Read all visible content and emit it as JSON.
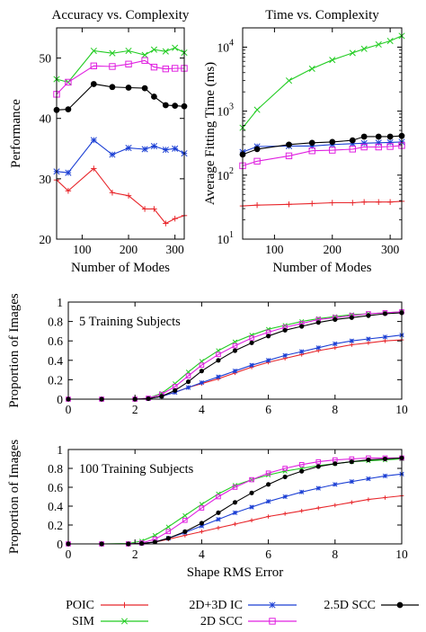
{
  "colors": {
    "POIC": "#e8262b",
    "SIM": "#22cc22",
    "2D+3D IC": "#1a3ed4",
    "2D SCC": "#e020e0",
    "2.5D SCC": "#000000"
  },
  "legend": [
    {
      "name": "POIC",
      "marker": "plus"
    },
    {
      "name": "SIM",
      "marker": "cross"
    },
    {
      "name": "2D+3D IC",
      "marker": "star"
    },
    {
      "name": "2D SCC",
      "marker": "square"
    },
    {
      "name": "2.5D SCC",
      "marker": "dot"
    }
  ],
  "chart_data": [
    {
      "id": "accuracy",
      "type": "line",
      "title": "Accuracy vs. Complexity",
      "xlabel": "Number of Modes",
      "ylabel": "Performance",
      "xlim": [
        45,
        320
      ],
      "ylim": [
        20,
        55
      ],
      "xticks": [
        100,
        200,
        300
      ],
      "yticks": [
        20,
        30,
        40,
        50
      ],
      "x": [
        45,
        70,
        125,
        165,
        200,
        235,
        255,
        280,
        300,
        320
      ],
      "series": [
        {
          "name": "POIC",
          "values": [
            29.8,
            28.0,
            31.7,
            27.7,
            27.2,
            25.0,
            25.0,
            22.6,
            23.4,
            23.9
          ]
        },
        {
          "name": "SIM",
          "values": [
            46.5,
            46.0,
            51.2,
            50.8,
            51.2,
            50.5,
            51.4,
            51.1,
            51.7,
            50.9
          ]
        },
        {
          "name": "2D+3D IC",
          "values": [
            31.2,
            31.0,
            36.4,
            34.0,
            35.1,
            34.9,
            35.4,
            34.8,
            35.0,
            34.2
          ]
        },
        {
          "name": "2D SCC",
          "values": [
            44.0,
            46.0,
            48.7,
            48.6,
            49.0,
            49.6,
            48.5,
            48.2,
            48.3,
            48.3
          ]
        },
        {
          "name": "2.5D SCC",
          "values": [
            41.4,
            41.5,
            45.7,
            45.2,
            45.1,
            45.0,
            43.6,
            42.2,
            42.1,
            42.0
          ]
        }
      ]
    },
    {
      "id": "time",
      "type": "line",
      "title": "Time vs. Complexity",
      "xlabel": "Number of Modes",
      "ylabel": "Average Fitting Time (ms)",
      "log_y": true,
      "xlim": [
        45,
        320
      ],
      "ylim": [
        10,
        20000
      ],
      "xticks": [
        100,
        200,
        300
      ],
      "yticks": [
        10,
        100,
        1000,
        10000
      ],
      "ytick_labels": [
        [
          "10",
          "1"
        ],
        [
          "10",
          "2"
        ],
        [
          "10",
          "3"
        ],
        [
          "10",
          "4"
        ]
      ],
      "x": [
        45,
        70,
        125,
        165,
        200,
        235,
        255,
        280,
        300,
        320
      ],
      "series": [
        {
          "name": "POIC",
          "values": [
            33,
            34,
            35,
            36,
            37,
            37,
            38,
            38,
            38,
            39
          ]
        },
        {
          "name": "SIM",
          "values": [
            550,
            1050,
            3000,
            4600,
            6300,
            8100,
            9400,
            11000,
            12500,
            15000
          ]
        },
        {
          "name": "2D+3D IC",
          "values": [
            230,
            280,
            285,
            285,
            300,
            310,
            315,
            320,
            325,
            330
          ]
        },
        {
          "name": "2D SCC",
          "values": [
            140,
            165,
            200,
            240,
            245,
            255,
            275,
            275,
            280,
            290
          ]
        },
        {
          "name": "2.5D SCC",
          "values": [
            210,
            255,
            300,
            320,
            330,
            350,
            400,
            400,
            400,
            410
          ]
        }
      ]
    },
    {
      "id": "cdf5",
      "type": "line",
      "annotation": "5 Training Subjects",
      "xlabel": "",
      "ylabel": "Proportion of Images",
      "xlim": [
        0,
        10
      ],
      "ylim": [
        0,
        1
      ],
      "xticks": [
        0,
        2,
        4,
        6,
        8,
        10
      ],
      "yticks": [
        0,
        0.2,
        0.4,
        0.6,
        0.8,
        1
      ],
      "x": [
        0,
        1,
        2,
        2.4,
        2.8,
        3.2,
        3.6,
        4,
        4.5,
        5,
        5.5,
        6,
        6.5,
        7,
        7.5,
        8,
        8.5,
        9,
        9.5,
        10
      ],
      "series": [
        {
          "name": "POIC",
          "values": [
            0,
            0,
            0,
            0.005,
            0.03,
            0.07,
            0.12,
            0.16,
            0.21,
            0.27,
            0.33,
            0.38,
            0.42,
            0.46,
            0.5,
            0.53,
            0.56,
            0.58,
            0.6,
            0.61
          ]
        },
        {
          "name": "SIM",
          "values": [
            0,
            0,
            0,
            0.01,
            0.06,
            0.16,
            0.28,
            0.39,
            0.5,
            0.59,
            0.66,
            0.72,
            0.76,
            0.8,
            0.83,
            0.85,
            0.87,
            0.88,
            0.89,
            0.9
          ]
        },
        {
          "name": "2D+3D IC",
          "values": [
            0,
            0,
            0,
            0.005,
            0.03,
            0.07,
            0.12,
            0.17,
            0.23,
            0.29,
            0.35,
            0.4,
            0.45,
            0.49,
            0.53,
            0.57,
            0.6,
            0.62,
            0.64,
            0.66
          ]
        },
        {
          "name": "2D SCC",
          "values": [
            0,
            0,
            0,
            0.01,
            0.05,
            0.13,
            0.24,
            0.35,
            0.46,
            0.55,
            0.63,
            0.69,
            0.74,
            0.78,
            0.82,
            0.84,
            0.86,
            0.88,
            0.89,
            0.9
          ]
        },
        {
          "name": "2.5D SCC",
          "values": [
            0,
            0,
            0,
            0.005,
            0.03,
            0.09,
            0.18,
            0.29,
            0.4,
            0.5,
            0.58,
            0.65,
            0.71,
            0.75,
            0.79,
            0.82,
            0.84,
            0.86,
            0.88,
            0.89
          ]
        }
      ]
    },
    {
      "id": "cdf100",
      "type": "line",
      "annotation": "100 Training Subjects",
      "xlabel": "Shape RMS Error",
      "ylabel": "Proportion of Images",
      "xlim": [
        0,
        10
      ],
      "ylim": [
        0,
        1
      ],
      "xticks": [
        0,
        2,
        4,
        6,
        8,
        10
      ],
      "yticks": [
        0,
        0.2,
        0.4,
        0.6,
        0.8,
        1
      ],
      "x": [
        0,
        1,
        1.8,
        2.2,
        2.6,
        3,
        3.5,
        4,
        4.5,
        5,
        5.5,
        6,
        6.5,
        7,
        7.5,
        8,
        8.5,
        9,
        9.5,
        10
      ],
      "series": [
        {
          "name": "POIC",
          "values": [
            0,
            0,
            0,
            0.005,
            0.02,
            0.05,
            0.09,
            0.13,
            0.17,
            0.21,
            0.25,
            0.29,
            0.32,
            0.35,
            0.38,
            0.41,
            0.44,
            0.47,
            0.49,
            0.51
          ]
        },
        {
          "name": "SIM",
          "values": [
            0,
            0,
            0.005,
            0.03,
            0.09,
            0.18,
            0.3,
            0.42,
            0.53,
            0.62,
            0.68,
            0.73,
            0.77,
            0.8,
            0.83,
            0.85,
            0.87,
            0.88,
            0.89,
            0.9
          ]
        },
        {
          "name": "2D+3D IC",
          "values": [
            0,
            0,
            0,
            0.005,
            0.02,
            0.06,
            0.12,
            0.19,
            0.26,
            0.33,
            0.39,
            0.45,
            0.5,
            0.55,
            0.59,
            0.63,
            0.66,
            0.69,
            0.72,
            0.74
          ]
        },
        {
          "name": "2D SCC",
          "values": [
            0,
            0,
            0,
            0.01,
            0.05,
            0.13,
            0.25,
            0.38,
            0.5,
            0.6,
            0.68,
            0.75,
            0.8,
            0.84,
            0.87,
            0.89,
            0.9,
            0.91,
            0.91,
            0.91
          ]
        },
        {
          "name": "2.5D SCC",
          "values": [
            0,
            0,
            0,
            0.005,
            0.02,
            0.06,
            0.13,
            0.22,
            0.33,
            0.44,
            0.54,
            0.63,
            0.71,
            0.77,
            0.82,
            0.85,
            0.87,
            0.89,
            0.9,
            0.91
          ]
        }
      ]
    }
  ]
}
